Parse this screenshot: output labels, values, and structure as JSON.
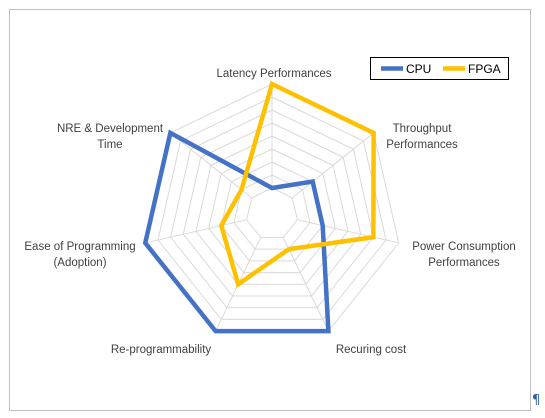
{
  "chart_data": {
    "type": "radar",
    "categories": [
      "Latency Performances",
      "Throughput Performances",
      "Power Consumption Performances",
      "Recuring cost",
      "Re-programmability",
      "Ease of Programming (Adoption)",
      "NRE & Development Time"
    ],
    "category_lines": [
      [
        "Latency Performances"
      ],
      [
        "Throughput",
        "Performances"
      ],
      [
        "Power Consumption",
        "Performances"
      ],
      [
        "Recuring cost"
      ],
      [
        "Re-programmability"
      ],
      [
        "Ease of Programming",
        "(Adoption)"
      ],
      [
        "NRE & Development",
        "Time"
      ]
    ],
    "rlim": [
      0,
      10
    ],
    "rings": 10,
    "grid": true,
    "legend_position": "top-right",
    "series": [
      {
        "name": "CPU",
        "color": "#4472c4",
        "values": [
          2,
          4,
          4,
          10,
          10,
          10,
          10
        ]
      },
      {
        "name": "FPGA",
        "color": "#ffc000",
        "values": [
          10,
          10,
          8,
          3,
          6,
          4,
          3
        ]
      }
    ]
  },
  "colors": {
    "grid": "#d9d9d9",
    "border": "#bfbfbf",
    "label": "#404040"
  },
  "paragraph_mark": "¶"
}
